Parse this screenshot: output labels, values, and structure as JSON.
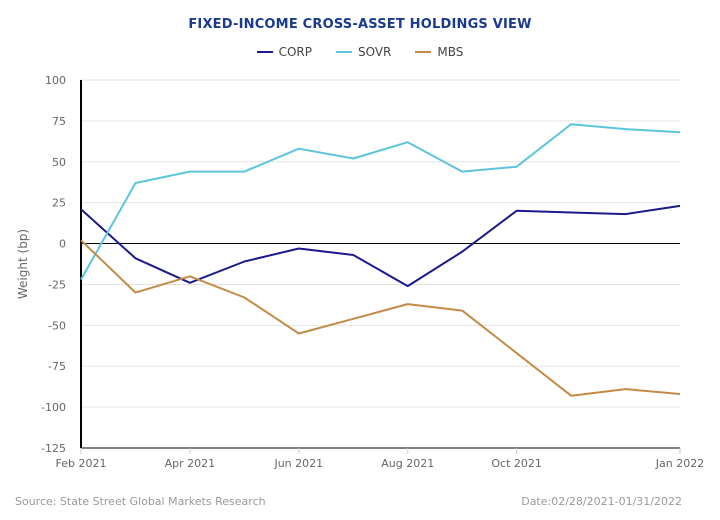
{
  "chart_data": {
    "type": "line",
    "title": "FIXED-INCOME CROSS-ASSET HOLDINGS VIEW",
    "xlabel": "",
    "ylabel": "Weight (bp)",
    "x": [
      "Feb 2021",
      "Mar 2021",
      "Apr 2021",
      "May 2021",
      "Jun 2021",
      "Jul 2021",
      "Aug 2021",
      "Sep 2021",
      "Oct 2021",
      "Nov 2021",
      "Dec 2021",
      "Jan 2022"
    ],
    "x_tick_labels": [
      {
        "index": 0,
        "label": "Feb 2021"
      },
      {
        "index": 2,
        "label": "Apr 2021"
      },
      {
        "index": 4,
        "label": "Jun 2021"
      },
      {
        "index": 6,
        "label": "Aug 2021"
      },
      {
        "index": 8,
        "label": "Oct 2021"
      },
      {
        "index": 11,
        "label": "Jan 2022"
      }
    ],
    "ylim": [
      -125,
      100
    ],
    "y_ticks": [
      100,
      75,
      50,
      25,
      0,
      -25,
      -50,
      -75,
      -100,
      -125
    ],
    "grid": true,
    "legend_position": "top-center",
    "series": [
      {
        "name": "CORP",
        "color": "#1a1a8c",
        "values": [
          21,
          -9,
          -24,
          -11,
          -3,
          -7,
          -26,
          -5,
          20,
          19,
          18,
          23
        ]
      },
      {
        "name": "SOVR",
        "color": "#5bc5db",
        "values": [
          -22,
          37,
          44,
          44,
          58,
          52,
          62,
          44,
          47,
          73,
          70,
          68
        ]
      },
      {
        "name": "MBS",
        "color": "#c48a48",
        "values": [
          2,
          -30,
          -20,
          -33,
          -55,
          -46,
          -37,
          -41,
          -67,
          -93,
          -89,
          -92
        ]
      }
    ]
  },
  "footer": {
    "source": "Source: State Street Global Markets Research",
    "date_range": "Date:02/28/2021-01/31/2022"
  }
}
